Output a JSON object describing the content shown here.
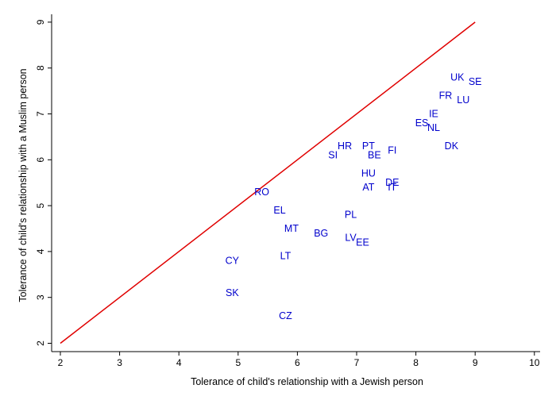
{
  "chart_data": {
    "type": "scatter",
    "title": "",
    "xlabel": "Tolerance of child's relationship with a Jewish person",
    "ylabel": "Tolerance of child's relationship with a Muslim person",
    "xlim": [
      2,
      10
    ],
    "ylim": [
      2,
      9
    ],
    "xticks": [
      "2",
      "3",
      "4",
      "5",
      "6",
      "7",
      "8",
      "9",
      "10"
    ],
    "yticks": [
      "2",
      "3",
      "4",
      "5",
      "6",
      "7",
      "8",
      "9"
    ],
    "grid": false,
    "reference_line": {
      "from": [
        2,
        2
      ],
      "to": [
        9,
        9
      ],
      "color": "#e00000"
    },
    "label_color": "#0000cc",
    "points": [
      {
        "label": "UK",
        "x": 8.7,
        "y": 7.8
      },
      {
        "label": "SE",
        "x": 9.0,
        "y": 7.7
      },
      {
        "label": "FR",
        "x": 8.5,
        "y": 7.4
      },
      {
        "label": "LU",
        "x": 8.8,
        "y": 7.3
      },
      {
        "label": "IE",
        "x": 8.3,
        "y": 7.0
      },
      {
        "label": "ES",
        "x": 8.1,
        "y": 6.8
      },
      {
        "label": "NL",
        "x": 8.3,
        "y": 6.7
      },
      {
        "label": "DK",
        "x": 8.6,
        "y": 6.3
      },
      {
        "label": "HR",
        "x": 6.8,
        "y": 6.3
      },
      {
        "label": "PT",
        "x": 7.2,
        "y": 6.3
      },
      {
        "label": "FI",
        "x": 7.6,
        "y": 6.2
      },
      {
        "label": "SI",
        "x": 6.6,
        "y": 6.1
      },
      {
        "label": "BE",
        "x": 7.3,
        "y": 6.1
      },
      {
        "label": "HU",
        "x": 7.2,
        "y": 5.7
      },
      {
        "label": "DE",
        "x": 7.6,
        "y": 5.5
      },
      {
        "label": "AT",
        "x": 7.2,
        "y": 5.4
      },
      {
        "label": "IT",
        "x": 7.6,
        "y": 5.4
      },
      {
        "label": "RO",
        "x": 5.4,
        "y": 5.3
      },
      {
        "label": "EL",
        "x": 5.7,
        "y": 4.9
      },
      {
        "label": "PL",
        "x": 6.9,
        "y": 4.8
      },
      {
        "label": "MT",
        "x": 5.9,
        "y": 4.5
      },
      {
        "label": "BG",
        "x": 6.4,
        "y": 4.4
      },
      {
        "label": "LV",
        "x": 6.9,
        "y": 4.3
      },
      {
        "label": "EE",
        "x": 7.1,
        "y": 4.2
      },
      {
        "label": "LT",
        "x": 5.8,
        "y": 3.9
      },
      {
        "label": "CY",
        "x": 4.9,
        "y": 3.8
      },
      {
        "label": "SK",
        "x": 4.9,
        "y": 3.1
      },
      {
        "label": "CZ",
        "x": 5.8,
        "y": 2.6
      }
    ]
  }
}
